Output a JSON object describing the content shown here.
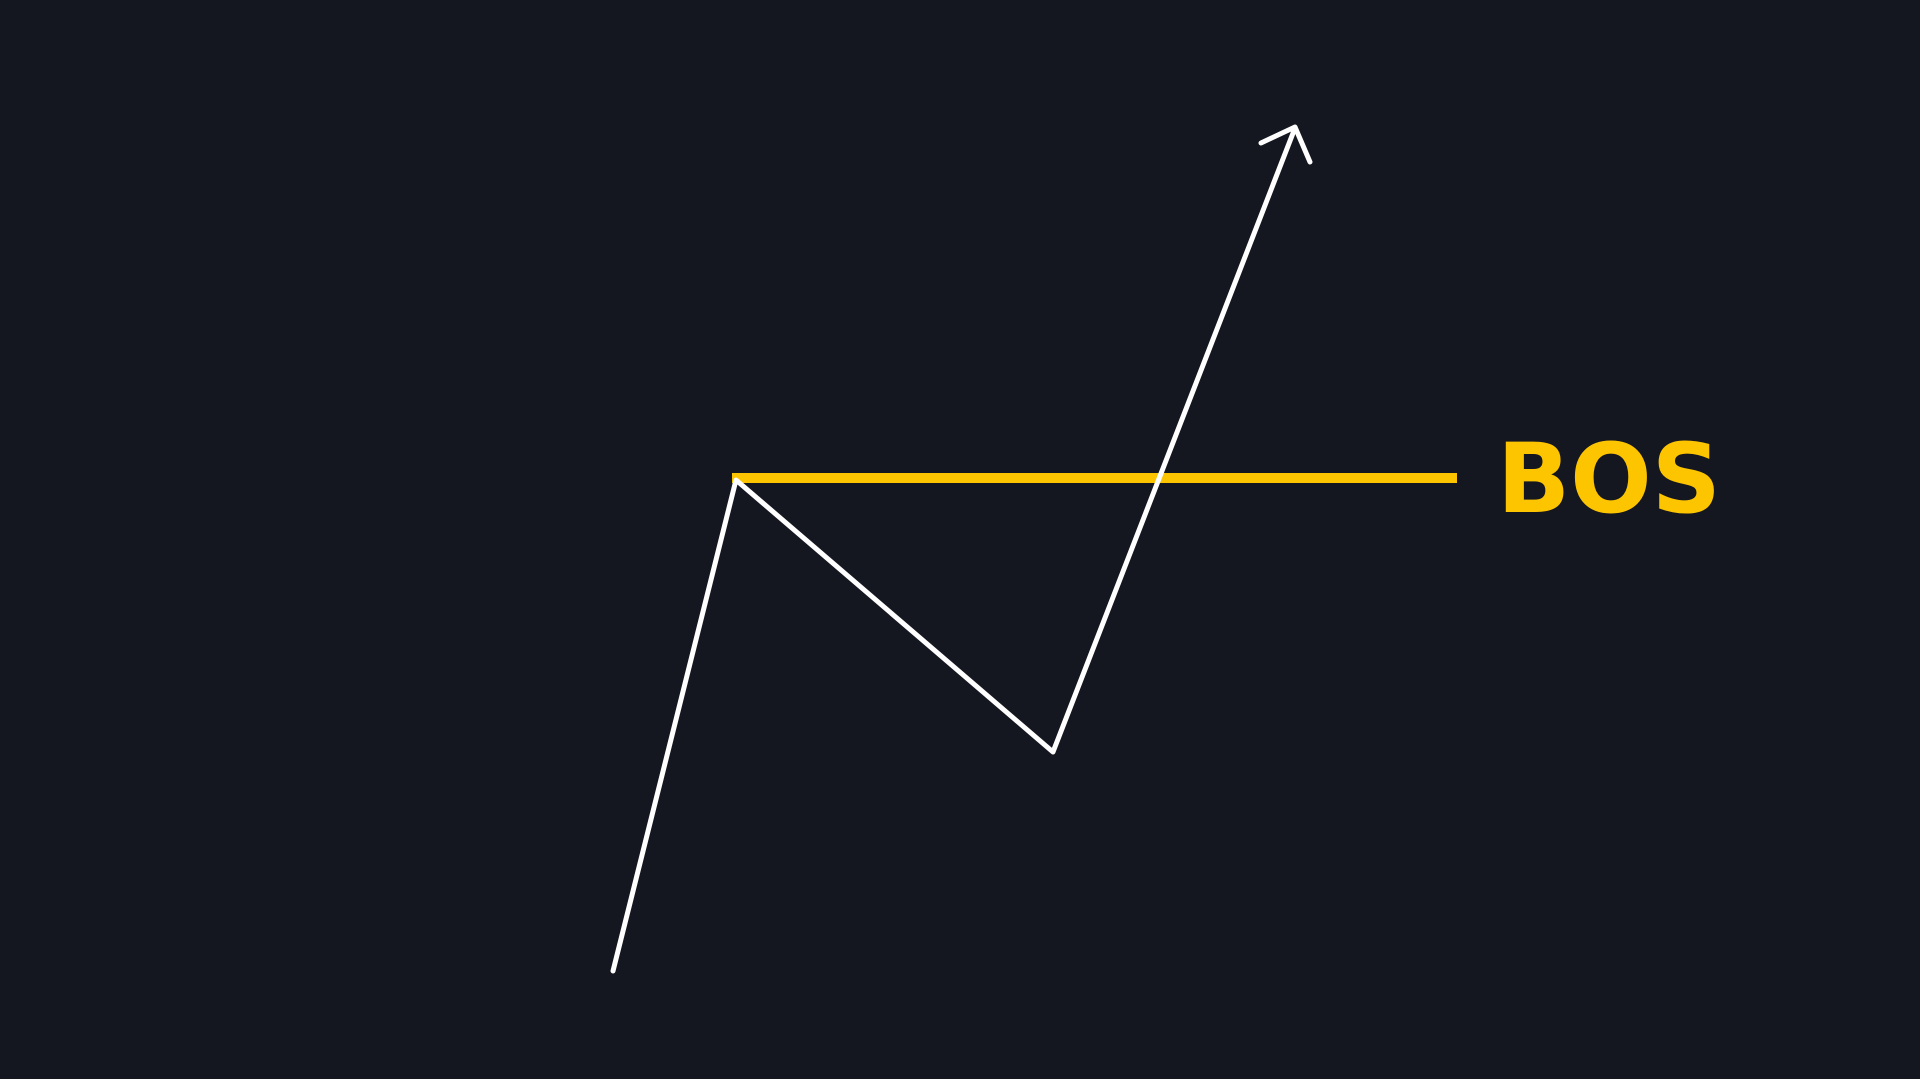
{
  "diagram": {
    "background_color": "#141620",
    "line_color": "#ffffff",
    "accent_color": "#fdc400",
    "bos_label": "BOS"
  }
}
